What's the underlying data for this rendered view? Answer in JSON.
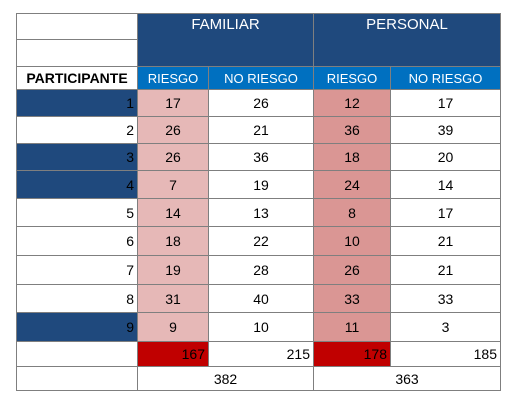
{
  "headers": {
    "familiar": "FAMILIAR",
    "personal": "PERSONAL",
    "participant": "PARTICIPANTE",
    "riesgo": "RIESGO",
    "no_riesgo": "NO RIESGO"
  },
  "rows": [
    {
      "participant": "1",
      "fam_riesgo": "17",
      "fam_no_riesgo": "26",
      "per_riesgo": "12",
      "per_no_riesgo": "17",
      "highlight": true
    },
    {
      "participant": "2",
      "fam_riesgo": "26",
      "fam_no_riesgo": "21",
      "per_riesgo": "36",
      "per_no_riesgo": "39",
      "highlight": false
    },
    {
      "participant": "3",
      "fam_riesgo": "26",
      "fam_no_riesgo": "36",
      "per_riesgo": "18",
      "per_no_riesgo": "20",
      "highlight": true
    },
    {
      "participant": "4",
      "fam_riesgo": "7",
      "fam_no_riesgo": "19",
      "per_riesgo": "24",
      "per_no_riesgo": "14",
      "highlight": true
    },
    {
      "participant": "5",
      "fam_riesgo": "14",
      "fam_no_riesgo": "13",
      "per_riesgo": "8",
      "per_no_riesgo": "17",
      "highlight": false
    },
    {
      "participant": "6",
      "fam_riesgo": "18",
      "fam_no_riesgo": "22",
      "per_riesgo": "10",
      "per_no_riesgo": "21",
      "highlight": false
    },
    {
      "participant": "7",
      "fam_riesgo": "19",
      "fam_no_riesgo": "28",
      "per_riesgo": "26",
      "per_no_riesgo": "21",
      "highlight": false
    },
    {
      "participant": "8",
      "fam_riesgo": "31",
      "fam_no_riesgo": "40",
      "per_riesgo": "33",
      "per_no_riesgo": "33",
      "highlight": false
    },
    {
      "participant": "9",
      "fam_riesgo": "9",
      "fam_no_riesgo": "10",
      "per_riesgo": "11",
      "per_no_riesgo": "3",
      "highlight": true
    }
  ],
  "totals": {
    "fam_riesgo": "167",
    "fam_no_riesgo": "215",
    "per_riesgo": "178",
    "per_no_riesgo": "185",
    "familiar_sum": "382",
    "personal_sum": "363"
  },
  "colors": {
    "dark_blue": "#1f497d",
    "sub_header_blue": "#0070c0",
    "familiar_risk": "#e6b8b7",
    "personal_risk": "#da9694",
    "total_red": "#c00000"
  }
}
